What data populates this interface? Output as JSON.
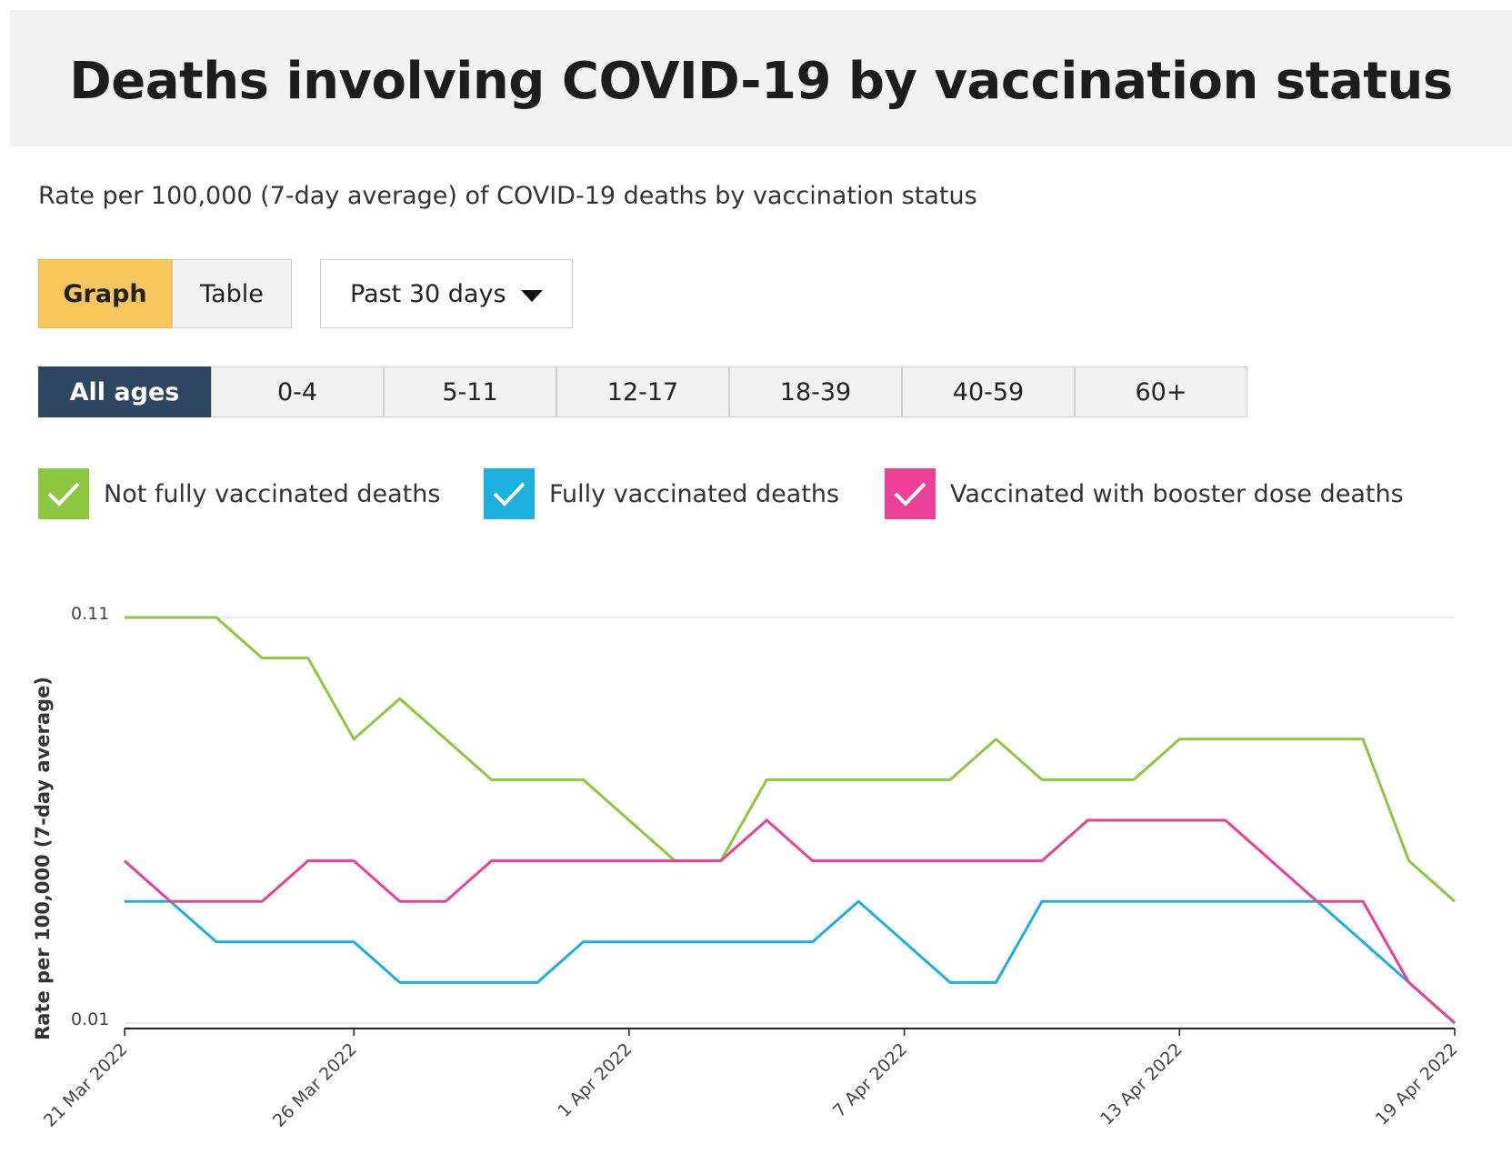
{
  "header": {
    "title": "Deaths involving COVID-19 by vaccination status"
  },
  "subtitle": "Rate per 100,000 (7-day average) of COVID-19 deaths by vaccination status",
  "view_toggle": {
    "graph_label": "Graph",
    "table_label": "Table",
    "selected": "Graph"
  },
  "range_select": {
    "value": "Past 30 days"
  },
  "age_tabs": [
    "All ages",
    "0-4",
    "5-11",
    "12-17",
    "18-39",
    "40-59",
    "60+"
  ],
  "age_selected": "All ages",
  "legend": [
    {
      "label": "Not fully vaccinated deaths",
      "color": "#8dc63f",
      "checked": true,
      "icon": "check-icon"
    },
    {
      "label": "Fully vaccinated deaths",
      "color": "#1bb0e0",
      "checked": true,
      "icon": "check-icon"
    },
    {
      "label": "Vaccinated with booster dose deaths",
      "color": "#ec3f96",
      "checked": true,
      "icon": "check-icon"
    }
  ],
  "chart_data": {
    "type": "line",
    "ylabel": "Rate per 100,000 (7-day average)",
    "xlabel": "",
    "ylim": [
      0.01,
      0.11
    ],
    "y_ticks": [
      "0.11",
      "0.01"
    ],
    "x_ticks": [
      "21 Mar 2022",
      "26 Mar 2022",
      "1 Apr 2022",
      "7 Apr 2022",
      "13 Apr 2022",
      "19 Apr 2022"
    ],
    "grid": true,
    "x": [
      "21 Mar 2022",
      "22 Mar 2022",
      "23 Mar 2022",
      "24 Mar 2022",
      "25 Mar 2022",
      "26 Mar 2022",
      "27 Mar 2022",
      "28 Mar 2022",
      "29 Mar 2022",
      "30 Mar 2022",
      "31 Mar 2022",
      "1 Apr 2022",
      "2 Apr 2022",
      "3 Apr 2022",
      "4 Apr 2022",
      "5 Apr 2022",
      "6 Apr 2022",
      "7 Apr 2022",
      "8 Apr 2022",
      "9 Apr 2022",
      "10 Apr 2022",
      "11 Apr 2022",
      "12 Apr 2022",
      "13 Apr 2022",
      "14 Apr 2022",
      "15 Apr 2022",
      "16 Apr 2022",
      "17 Apr 2022",
      "18 Apr 2022",
      "19 Apr 2022"
    ],
    "series": [
      {
        "name": "Not fully vaccinated deaths",
        "color": "#8dc63f",
        "values": [
          0.11,
          0.11,
          0.11,
          0.1,
          0.1,
          0.08,
          0.09,
          0.08,
          0.07,
          0.07,
          0.07,
          0.06,
          0.05,
          0.05,
          0.07,
          0.07,
          0.07,
          0.07,
          0.07,
          0.08,
          0.07,
          0.07,
          0.07,
          0.08,
          0.08,
          0.08,
          0.08,
          0.08,
          0.05,
          0.04
        ]
      },
      {
        "name": "Fully vaccinated deaths",
        "color": "#1bb0e0",
        "values": [
          0.04,
          0.04,
          0.03,
          0.03,
          0.03,
          0.03,
          0.02,
          0.02,
          0.02,
          0.02,
          0.03,
          0.03,
          0.03,
          0.03,
          0.03,
          0.03,
          0.04,
          0.03,
          0.02,
          0.02,
          0.04,
          0.04,
          0.04,
          0.04,
          0.04,
          0.04,
          0.04,
          0.03,
          0.02,
          0.01
        ]
      },
      {
        "name": "Vaccinated with booster dose deaths",
        "color": "#ec3f96",
        "values": [
          0.05,
          0.04,
          0.04,
          0.04,
          0.05,
          0.05,
          0.04,
          0.04,
          0.05,
          0.05,
          0.05,
          0.05,
          0.05,
          0.05,
          0.06,
          0.05,
          0.05,
          0.05,
          0.05,
          0.05,
          0.05,
          0.06,
          0.06,
          0.06,
          0.06,
          0.05,
          0.04,
          0.04,
          0.02,
          0.01
        ]
      }
    ]
  }
}
